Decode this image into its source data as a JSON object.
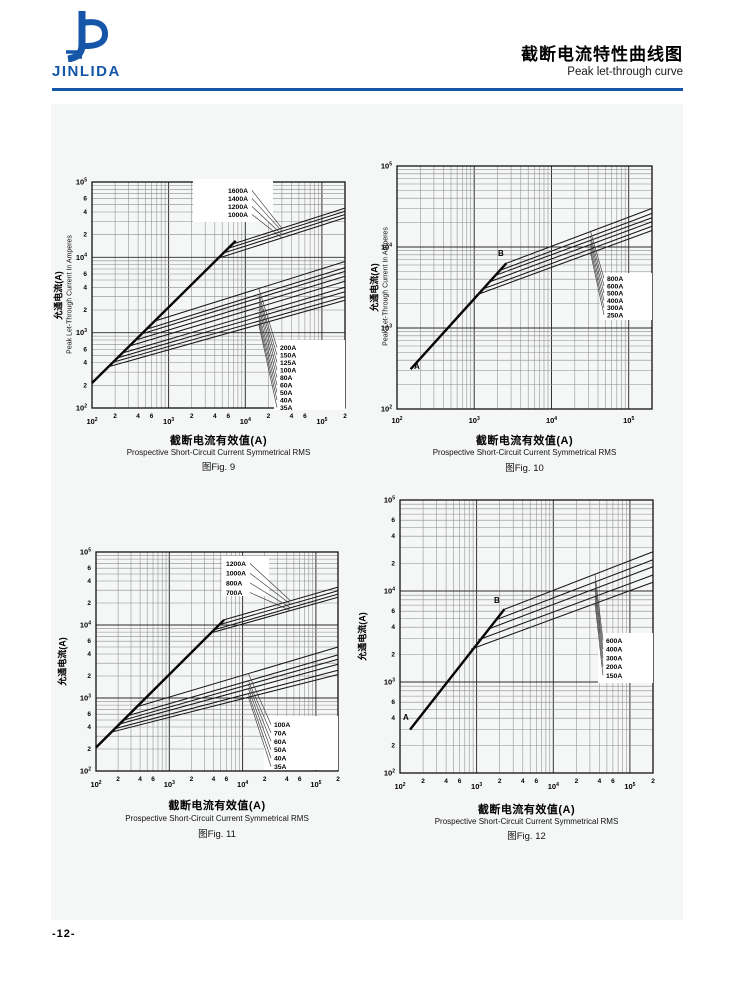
{
  "header": {
    "logo_text": "JINLIDA",
    "title_zh": "截断电流特性曲线图",
    "title_en": "Peak let-through curve",
    "accent_color": "#1556a8"
  },
  "page_number": "-12-",
  "chart_data": [
    {
      "id": "fig9",
      "type": "line",
      "caption_zh": "截断电流有效值(A)",
      "caption_en": "Prospective Short-Circuit Current Symmetrical RMS",
      "caption_fig": "图Fig. 9",
      "ylabel_zh": "允通电流(A)",
      "ylabel_en": "Peak Let-Through Current In Amperes",
      "x_range": [
        100,
        200000
      ],
      "y_range": [
        100,
        100000
      ],
      "log_log": true,
      "grid": true,
      "detailed_ticks": true,
      "prospective_line": {
        "from": [
          100,
          215
        ],
        "to": [
          7500,
          16500
        ]
      },
      "point_labels": [],
      "series": [
        {
          "name": "1600A",
          "branch": [
            6800,
            15000
          ],
          "end": [
            200000,
            45000
          ]
        },
        {
          "name": "1400A",
          "branch": [
            6000,
            13200
          ],
          "end": [
            200000,
            41000
          ]
        },
        {
          "name": "1200A",
          "branch": [
            5200,
            11400
          ],
          "end": [
            200000,
            37000
          ]
        },
        {
          "name": "1000A",
          "branch": [
            4400,
            9700
          ],
          "end": [
            200000,
            33500
          ]
        },
        {
          "name": "200A",
          "branch": [
            640,
            1410
          ],
          "end": [
            200000,
            8800
          ]
        },
        {
          "name": "150A",
          "branch": [
            500,
            1100
          ],
          "end": [
            200000,
            7300
          ]
        },
        {
          "name": "125A",
          "branch": [
            430,
            950
          ],
          "end": [
            200000,
            6500
          ]
        },
        {
          "name": "100A",
          "branch": [
            360,
            790
          ],
          "end": [
            200000,
            5600
          ]
        },
        {
          "name": "80A",
          "branch": [
            300,
            660
          ],
          "end": [
            200000,
            4800
          ]
        },
        {
          "name": "60A",
          "branch": [
            240,
            530
          ],
          "end": [
            200000,
            4000
          ]
        },
        {
          "name": "50A",
          "branch": [
            210,
            460
          ],
          "end": [
            200000,
            3500
          ]
        },
        {
          "name": "40A",
          "branch": [
            180,
            400
          ],
          "end": [
            200000,
            3000
          ]
        },
        {
          "name": "35A",
          "branch": [
            160,
            350
          ],
          "end": [
            200000,
            2700
          ]
        }
      ],
      "label_groups": [
        {
          "items": [
            "1600A",
            "1400A",
            "1200A",
            "1000A"
          ],
          "leader_x": 30000
        },
        {
          "items": [
            "200A",
            "150A",
            "125A",
            "100A",
            "80A",
            "60A",
            "50A",
            "40A",
            "35A"
          ],
          "leader_x": 15000
        }
      ]
    },
    {
      "id": "fig10",
      "type": "line",
      "caption_zh": "截断电流有效值(A)",
      "caption_en": "Prospective Short-Circuit Current Symmetrical RMS",
      "caption_fig": "图Fig. 10",
      "ylabel_zh": "允通电流(A)",
      "ylabel_en": "Peak Let-Through Current In Amperes",
      "x_range": [
        100,
        200000
      ],
      "y_range": [
        100,
        100000
      ],
      "log_log": true,
      "grid": true,
      "detailed_ticks": false,
      "prospective_line": {
        "from": [
          150,
          310
        ],
        "to": [
          2600,
          6300
        ]
      },
      "point_labels": [
        {
          "text": "A"
        },
        {
          "text": "B"
        }
      ],
      "series": [
        {
          "name": "800A",
          "branch": [
            2600,
            6300
          ],
          "end": [
            200000,
            30000
          ]
        },
        {
          "name": "600A",
          "branch": [
            2100,
            5100
          ],
          "end": [
            200000,
            26000
          ]
        },
        {
          "name": "500A",
          "branch": [
            1800,
            4400
          ],
          "end": [
            200000,
            23000
          ]
        },
        {
          "name": "400A",
          "branch": [
            1500,
            3650
          ],
          "end": [
            200000,
            20500
          ]
        },
        {
          "name": "300A",
          "branch": [
            1250,
            3000
          ],
          "end": [
            200000,
            18000
          ]
        },
        {
          "name": "250A",
          "branch": [
            1050,
            2550
          ],
          "end": [
            200000,
            16000
          ]
        }
      ],
      "label_groups": [
        {
          "items": [
            "800A",
            "600A",
            "500A",
            "400A",
            "300A",
            "250A"
          ],
          "leader_x": 32000
        }
      ]
    },
    {
      "id": "fig11",
      "type": "line",
      "caption_zh": "截断电流有效值(A)",
      "caption_en": "Prospective Short-Circuit Current Symmetrical RMS",
      "caption_fig": "图Fig. 11",
      "ylabel_zh": "允通电流(A)",
      "x_range": [
        100,
        200000
      ],
      "y_range": [
        100,
        100000
      ],
      "log_log": true,
      "grid": true,
      "detailed_ticks": true,
      "prospective_line": {
        "from": [
          100,
          210
        ],
        "to": [
          5600,
          11800
        ]
      },
      "point_labels": [],
      "series": [
        {
          "name": "1200A",
          "branch": [
            5600,
            11800
          ],
          "end": [
            200000,
            33000
          ]
        },
        {
          "name": "1000A",
          "branch": [
            4800,
            10100
          ],
          "end": [
            200000,
            29500
          ]
        },
        {
          "name": "800A",
          "branch": [
            4100,
            8600
          ],
          "end": [
            200000,
            26500
          ]
        },
        {
          "name": "700A",
          "branch": [
            3700,
            7800
          ],
          "end": [
            200000,
            24000
          ]
        },
        {
          "name": "100A",
          "branch": [
            360,
            760
          ],
          "end": [
            200000,
            5000
          ]
        },
        {
          "name": "70A",
          "branch": [
            270,
            570
          ],
          "end": [
            200000,
            3900
          ]
        },
        {
          "name": "60A",
          "branch": [
            240,
            500
          ],
          "end": [
            200000,
            3400
          ]
        },
        {
          "name": "50A",
          "branch": [
            210,
            440
          ],
          "end": [
            200000,
            2900
          ]
        },
        {
          "name": "40A",
          "branch": [
            180,
            380
          ],
          "end": [
            200000,
            2400
          ]
        },
        {
          "name": "35A",
          "branch": [
            160,
            340
          ],
          "end": [
            200000,
            2100
          ]
        }
      ],
      "label_groups": [
        {
          "items": [
            "1200A",
            "1000A",
            "800A",
            "700A"
          ],
          "leader_x": 45000
        },
        {
          "items": [
            "100A",
            "70A",
            "60A",
            "50A",
            "40A",
            "35A"
          ],
          "leader_x": 12000
        }
      ]
    },
    {
      "id": "fig12",
      "type": "line",
      "caption_zh": "截断电流有效值(A)",
      "caption_en": "Prospective Short-Circuit Current Symmetrical RMS",
      "caption_fig": "图Fig. 12",
      "ylabel_zh": "允通电流(A)",
      "x_range": [
        100,
        200000
      ],
      "y_range": [
        100,
        100000
      ],
      "log_log": true,
      "grid": true,
      "detailed_ticks": true,
      "prospective_line": {
        "from": [
          135,
          300
        ],
        "to": [
          2300,
          6300
        ]
      },
      "point_labels": [
        {
          "text": "A"
        },
        {
          "text": "B"
        }
      ],
      "series": [
        {
          "name": "600A",
          "branch": [
            2300,
            6300
          ],
          "end": [
            200000,
            27000
          ]
        },
        {
          "name": "400A",
          "branch": [
            1750,
            4800
          ],
          "end": [
            200000,
            22000
          ]
        },
        {
          "name": "300A",
          "branch": [
            1400,
            3800
          ],
          "end": [
            200000,
            18500
          ]
        },
        {
          "name": "200A",
          "branch": [
            1050,
            2900
          ],
          "end": [
            200000,
            15000
          ]
        },
        {
          "name": "150A",
          "branch": [
            850,
            2300
          ],
          "end": [
            200000,
            12500
          ]
        }
      ],
      "label_groups": [
        {
          "items": [
            "600A",
            "400A",
            "300A",
            "200A",
            "150A"
          ],
          "leader_x": 35000
        }
      ]
    }
  ]
}
